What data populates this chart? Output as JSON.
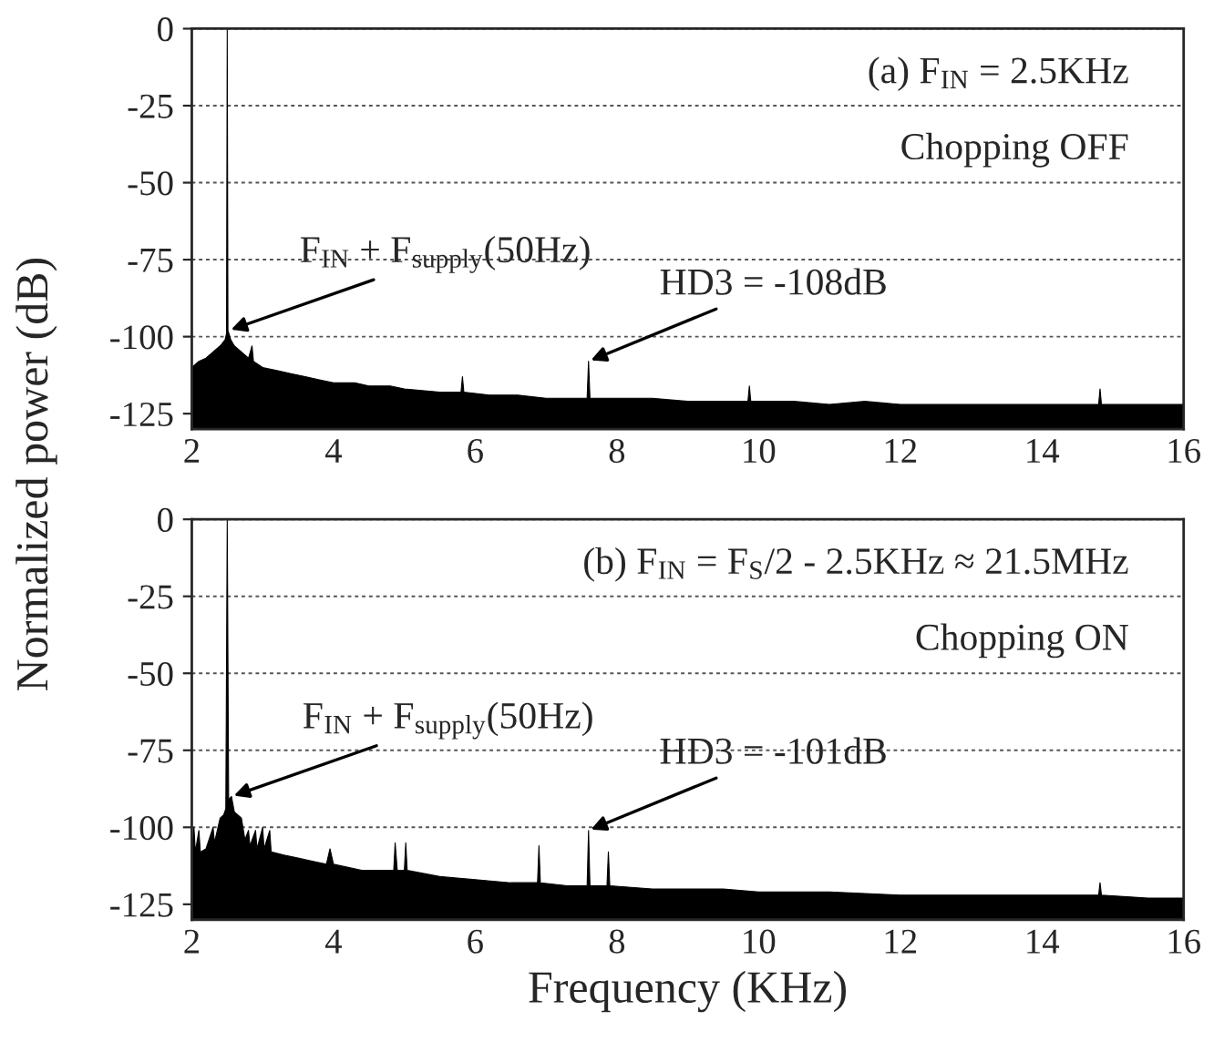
{
  "chart_data": [
    {
      "type": "area",
      "xlim": [
        2,
        16
      ],
      "xticks": [
        2,
        4,
        6,
        8,
        10,
        12,
        14,
        16
      ],
      "ylim": [
        -130,
        0
      ],
      "yticks": [
        0,
        -25,
        -50,
        -75,
        -100,
        -125
      ],
      "grid": "y",
      "ylabel": "Normalized power (dB)",
      "x": [
        2.0,
        2.1,
        2.2,
        2.3,
        2.4,
        2.47,
        2.49,
        2.5,
        2.51,
        2.55,
        2.6,
        2.7,
        2.8,
        2.85,
        2.87,
        3.0,
        3.2,
        3.4,
        3.6,
        3.8,
        4.0,
        4.3,
        4.5,
        4.8,
        5.0,
        5.5,
        5.8,
        5.82,
        5.84,
        6.2,
        6.6,
        7.0,
        7.5,
        7.58,
        7.6,
        7.62,
        8.0,
        8.5,
        9.0,
        9.5,
        9.85,
        9.87,
        9.89,
        10.5,
        11.0,
        11.5,
        12.0,
        12.5,
        13.0,
        13.5,
        14.0,
        14.5,
        14.8,
        14.82,
        14.84,
        15.0,
        15.5,
        16.0
      ],
      "series": [
        {
          "color": "#000000",
          "values": [
            -110,
            -108,
            -107,
            -105,
            -103,
            -101,
            -99,
            0,
            -98,
            -101,
            -103,
            -105,
            -107,
            -103,
            -108,
            -110,
            -111,
            -112,
            -113,
            -114,
            -115,
            -115,
            -116,
            -116,
            -117,
            -118,
            -118,
            -113,
            -118,
            -119,
            -119,
            -120,
            -120,
            -120,
            -108,
            -120,
            -120,
            -120,
            -121,
            -121,
            -121,
            -116,
            -121,
            -121,
            -122,
            -121,
            -122,
            -122,
            -122,
            -122,
            -122,
            -122,
            -122,
            -117,
            -122,
            -122,
            -122,
            -122
          ]
        }
      ],
      "annotations": [
        "(a) F$_{IN}$ = 2.5KHz",
        "Chopping OFF",
        {
          "text": "F$_{IN}$ + F$_{supply}$(50Hz)",
          "x": 2.52,
          "y": -98
        },
        {
          "text": "HD3 = -108dB",
          "x": 7.6,
          "y": -108
        }
      ]
    },
    {
      "type": "area",
      "xlim": [
        2,
        16
      ],
      "xticks": [
        2,
        4,
        6,
        8,
        10,
        12,
        14,
        16
      ],
      "ylim": [
        -130,
        0
      ],
      "yticks": [
        0,
        -25,
        -50,
        -75,
        -100,
        -125
      ],
      "grid": "y",
      "xlabel": "Frequency (KHz)",
      "x": [
        2.0,
        2.03,
        2.05,
        2.1,
        2.12,
        2.2,
        2.3,
        2.32,
        2.4,
        2.45,
        2.48,
        2.5,
        2.52,
        2.56,
        2.6,
        2.7,
        2.75,
        2.8,
        2.82,
        2.9,
        2.92,
        3.0,
        3.02,
        3.1,
        3.12,
        3.3,
        3.5,
        3.7,
        3.9,
        3.95,
        4.0,
        4.4,
        4.85,
        4.87,
        4.9,
        5.0,
        5.02,
        5.04,
        5.5,
        6.0,
        6.5,
        6.88,
        6.9,
        6.92,
        7.3,
        7.58,
        7.6,
        7.62,
        7.86,
        7.88,
        7.9,
        8.5,
        9.0,
        9.5,
        10.0,
        10.5,
        11.0,
        12.0,
        13.0,
        14.0,
        14.8,
        14.82,
        14.84,
        15.5,
        16.0
      ],
      "series": [
        {
          "color": "#000000",
          "values": [
            -108,
            -100,
            -108,
            -101,
            -108,
            -107,
            -100,
            -105,
            -97,
            -96,
            -94,
            0,
            -91,
            -90,
            -95,
            -97,
            -104,
            -101,
            -106,
            -101,
            -107,
            -100,
            -107,
            -101,
            -108,
            -109,
            -110,
            -111,
            -112,
            -107,
            -112,
            -114,
            -114,
            -105,
            -114,
            -114,
            -105,
            -114,
            -116,
            -117,
            -118,
            -118,
            -106,
            -118,
            -119,
            -119,
            -101,
            -119,
            -119,
            -108,
            -119,
            -120,
            -120,
            -120,
            -121,
            -121,
            -121,
            -122,
            -122,
            -122,
            -122,
            -118,
            -122,
            -123,
            -123
          ]
        }
      ],
      "annotations": [
        "(b) F$_{IN}$ = F$_{S}$/2 - 2.5KHz ≈ 21.5MHz",
        "Chopping ON",
        {
          "text": "F$_{IN}$ + F$_{supply}$(50Hz)",
          "x": 2.56,
          "y": -90
        },
        {
          "text": "HD3 = -101dB",
          "x": 7.6,
          "y": -101
        }
      ]
    }
  ]
}
